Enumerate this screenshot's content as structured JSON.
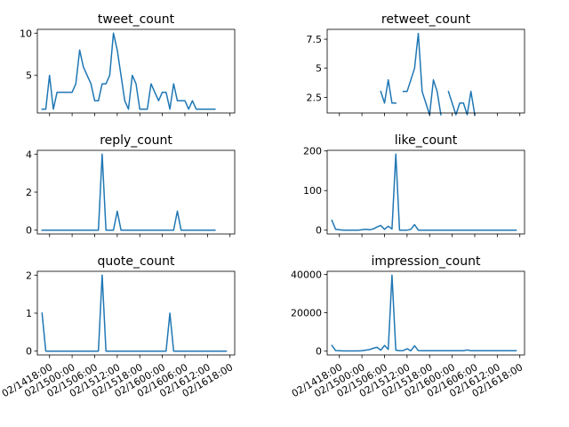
{
  "chart_data": [
    {
      "type": "line",
      "title": "tweet_count",
      "xlabel": "",
      "ylabel": "",
      "yticks": [
        5,
        10
      ],
      "ylim": [
        0.55,
        10.45
      ],
      "grid": false,
      "x": [
        "02/14 16:00",
        "02/14 17:00",
        "02/14 18:00",
        "02/14 19:00",
        "02/14 20:00",
        "02/14 21:00",
        "02/14 22:00",
        "02/14 23:00",
        "02/15 00:00",
        "02/15 01:00",
        "02/15 02:00",
        "02/15 03:00",
        "02/15 04:00",
        "02/15 05:00",
        "02/15 06:00",
        "02/15 07:00",
        "02/15 08:00",
        "02/15 09:00",
        "02/15 10:00",
        "02/15 11:00",
        "02/15 12:00",
        "02/15 13:00",
        "02/15 14:00",
        "02/15 15:00",
        "02/15 16:00",
        "02/15 17:00",
        "02/15 18:00",
        "02/15 19:00",
        "02/15 20:00",
        "02/15 21:00",
        "02/15 22:00",
        "02/15 23:00",
        "02/16 00:00",
        "02/16 01:00",
        "02/16 02:00",
        "02/16 03:00",
        "02/16 04:00",
        "02/16 05:00",
        "02/16 06:00",
        "02/16 07:00",
        "02/16 08:00",
        "02/16 09:00",
        "02/16 10:00",
        "02/16 11:00",
        "02/16 12:00",
        "02/16 13:00",
        "02/16 14:00",
        "02/16 15:00",
        "02/16 16:00",
        "02/16 17:00",
        "02/16 18:00"
      ],
      "values": [
        1,
        1,
        5,
        1,
        3,
        3,
        3,
        3,
        3,
        4,
        8,
        6,
        5,
        4,
        2,
        2,
        4,
        4,
        5,
        10,
        8,
        5,
        2,
        1,
        5,
        4,
        1,
        1,
        1,
        4,
        3,
        2,
        3,
        3,
        1,
        4,
        2,
        2,
        2,
        1,
        2,
        1,
        1,
        1,
        1,
        1,
        1,
        null,
        null,
        null,
        null
      ]
    },
    {
      "type": "line",
      "title": "retweet_count",
      "xlabel": "",
      "ylabel": "",
      "yticks": [
        2.5,
        5.0,
        7.5
      ],
      "ylim": [
        1.15,
        8.35
      ],
      "grid": false,
      "x": [
        "02/14 16:00",
        "02/14 17:00",
        "02/14 18:00",
        "02/14 19:00",
        "02/14 20:00",
        "02/14 21:00",
        "02/14 22:00",
        "02/14 23:00",
        "02/15 00:00",
        "02/15 01:00",
        "02/15 02:00",
        "02/15 03:00",
        "02/15 04:00",
        "02/15 05:00",
        "02/15 06:00",
        "02/15 07:00",
        "02/15 08:00",
        "02/15 09:00",
        "02/15 10:00",
        "02/15 11:00",
        "02/15 12:00",
        "02/15 13:00",
        "02/15 14:00",
        "02/15 15:00",
        "02/15 16:00",
        "02/15 17:00",
        "02/15 18:00",
        "02/15 19:00",
        "02/15 20:00",
        "02/15 21:00",
        "02/15 22:00",
        "02/15 23:00",
        "02/16 00:00",
        "02/16 01:00",
        "02/16 02:00",
        "02/16 03:00",
        "02/16 04:00",
        "02/16 05:00",
        "02/16 06:00",
        "02/16 07:00",
        "02/16 08:00",
        "02/16 09:00",
        "02/16 10:00",
        "02/16 11:00",
        "02/16 12:00",
        "02/16 13:00",
        "02/16 14:00",
        "02/16 15:00",
        "02/16 16:00",
        "02/16 17:00",
        "02/16 18:00"
      ],
      "values": [
        null,
        null,
        null,
        null,
        null,
        null,
        null,
        null,
        null,
        null,
        null,
        null,
        null,
        3,
        2,
        4,
        2,
        2,
        null,
        3,
        3,
        4,
        5,
        8,
        3,
        2,
        1,
        4,
        3,
        1,
        null,
        3,
        2,
        1,
        2,
        2,
        1,
        3,
        1,
        null,
        null,
        null,
        null,
        null,
        null,
        null,
        null,
        null,
        null,
        null,
        null
      ]
    },
    {
      "type": "line",
      "title": "reply_count",
      "xlabel": "",
      "ylabel": "",
      "yticks": [
        0,
        2,
        4
      ],
      "ylim": [
        -0.2,
        4.2
      ],
      "grid": false,
      "x": [
        "02/14 16:00",
        "02/14 17:00",
        "02/14 18:00",
        "02/14 19:00",
        "02/14 20:00",
        "02/14 21:00",
        "02/14 22:00",
        "02/14 23:00",
        "02/15 00:00",
        "02/15 01:00",
        "02/15 02:00",
        "02/15 03:00",
        "02/15 04:00",
        "02/15 05:00",
        "02/15 06:00",
        "02/15 07:00",
        "02/15 08:00",
        "02/15 09:00",
        "02/15 10:00",
        "02/15 11:00",
        "02/15 12:00",
        "02/15 13:00",
        "02/15 14:00",
        "02/15 15:00",
        "02/15 16:00",
        "02/15 17:00",
        "02/15 18:00",
        "02/15 19:00",
        "02/15 20:00",
        "02/15 21:00",
        "02/15 22:00",
        "02/15 23:00",
        "02/16 00:00",
        "02/16 01:00",
        "02/16 02:00",
        "02/16 03:00",
        "02/16 04:00",
        "02/16 05:00",
        "02/16 06:00",
        "02/16 07:00",
        "02/16 08:00",
        "02/16 09:00",
        "02/16 10:00",
        "02/16 11:00",
        "02/16 12:00",
        "02/16 13:00",
        "02/16 14:00",
        "02/16 15:00",
        "02/16 16:00",
        "02/16 17:00",
        "02/16 18:00"
      ],
      "values": [
        0,
        0,
        0,
        0,
        0,
        0,
        0,
        0,
        0,
        0,
        0,
        0,
        0,
        0,
        0,
        0,
        4,
        0,
        0,
        0,
        1,
        0,
        0,
        0,
        0,
        0,
        0,
        0,
        0,
        0,
        0,
        0,
        0,
        0,
        0,
        0,
        1,
        0,
        0,
        0,
        0,
        0,
        0,
        0,
        0,
        0,
        0,
        null,
        null,
        null,
        null
      ]
    },
    {
      "type": "line",
      "title": "like_count",
      "xlabel": "",
      "ylabel": "",
      "yticks": [
        0,
        100,
        200
      ],
      "ylim": [
        -9.6,
        201.6
      ],
      "grid": false,
      "x": [
        "02/14 16:00",
        "02/14 17:00",
        "02/14 18:00",
        "02/14 19:00",
        "02/14 20:00",
        "02/14 21:00",
        "02/14 22:00",
        "02/14 23:00",
        "02/15 00:00",
        "02/15 01:00",
        "02/15 02:00",
        "02/15 03:00",
        "02/15 04:00",
        "02/15 05:00",
        "02/15 06:00",
        "02/15 07:00",
        "02/15 08:00",
        "02/15 09:00",
        "02/15 10:00",
        "02/15 11:00",
        "02/15 12:00",
        "02/15 13:00",
        "02/15 14:00",
        "02/15 15:00",
        "02/15 16:00",
        "02/15 17:00",
        "02/15 18:00",
        "02/15 19:00",
        "02/15 20:00",
        "02/15 21:00",
        "02/15 22:00",
        "02/15 23:00",
        "02/16 00:00",
        "02/16 01:00",
        "02/16 02:00",
        "02/16 03:00",
        "02/16 04:00",
        "02/16 05:00",
        "02/16 06:00",
        "02/16 07:00",
        "02/16 08:00",
        "02/16 09:00",
        "02/16 10:00",
        "02/16 11:00",
        "02/16 12:00",
        "02/16 13:00",
        "02/16 14:00",
        "02/16 15:00",
        "02/16 16:00",
        "02/16 17:00",
        "02/16 18:00"
      ],
      "values": [
        25,
        2,
        1,
        0,
        0,
        0,
        0,
        0,
        1,
        2,
        1,
        3,
        8,
        12,
        2,
        10,
        3,
        192,
        0,
        0,
        0,
        2,
        14,
        0,
        0,
        0,
        0,
        0,
        0,
        0,
        0,
        0,
        0,
        0,
        0,
        0,
        0,
        0,
        0,
        0,
        0,
        0,
        0,
        0,
        0,
        0,
        0,
        0,
        0,
        0,
        null
      ]
    },
    {
      "type": "line",
      "title": "quote_count",
      "xlabel": "",
      "ylabel": "",
      "yticks": [
        0,
        1,
        2
      ],
      "ylim": [
        -0.1,
        2.1
      ],
      "grid": false,
      "x": [
        "02/14 16:00",
        "02/14 17:00",
        "02/14 18:00",
        "02/14 19:00",
        "02/14 20:00",
        "02/14 21:00",
        "02/14 22:00",
        "02/14 23:00",
        "02/15 00:00",
        "02/15 01:00",
        "02/15 02:00",
        "02/15 03:00",
        "02/15 04:00",
        "02/15 05:00",
        "02/15 06:00",
        "02/15 07:00",
        "02/15 08:00",
        "02/15 09:00",
        "02/15 10:00",
        "02/15 11:00",
        "02/15 12:00",
        "02/15 13:00",
        "02/15 14:00",
        "02/15 15:00",
        "02/15 16:00",
        "02/15 17:00",
        "02/15 18:00",
        "02/15 19:00",
        "02/15 20:00",
        "02/15 21:00",
        "02/15 22:00",
        "02/15 23:00",
        "02/16 00:00",
        "02/16 01:00",
        "02/16 02:00",
        "02/16 03:00",
        "02/16 04:00",
        "02/16 05:00",
        "02/16 06:00",
        "02/16 07:00",
        "02/16 08:00",
        "02/16 09:00",
        "02/16 10:00",
        "02/16 11:00",
        "02/16 12:00",
        "02/16 13:00",
        "02/16 14:00",
        "02/16 15:00",
        "02/16 16:00",
        "02/16 17:00",
        "02/16 18:00"
      ],
      "values": [
        1,
        0,
        0,
        0,
        0,
        0,
        0,
        0,
        0,
        0,
        0,
        0,
        0,
        0,
        0,
        0,
        2,
        0,
        0,
        0,
        0,
        0,
        0,
        0,
        0,
        0,
        0,
        0,
        0,
        0,
        0,
        0,
        0,
        0,
        1,
        0,
        0,
        0,
        0,
        0,
        0,
        0,
        0,
        0,
        0,
        0,
        0,
        0,
        0,
        0,
        null
      ]
    },
    {
      "type": "line",
      "title": "impression_count",
      "xlabel": "",
      "ylabel": "",
      "yticks": [
        0,
        20000,
        40000
      ],
      "ylim": [
        -1980,
        41580
      ],
      "grid": false,
      "x": [
        "02/14 16:00",
        "02/14 17:00",
        "02/14 18:00",
        "02/14 19:00",
        "02/14 20:00",
        "02/14 21:00",
        "02/14 22:00",
        "02/14 23:00",
        "02/15 00:00",
        "02/15 01:00",
        "02/15 02:00",
        "02/15 03:00",
        "02/15 04:00",
        "02/15 05:00",
        "02/15 06:00",
        "02/15 07:00",
        "02/15 08:00",
        "02/15 09:00",
        "02/15 10:00",
        "02/15 11:00",
        "02/15 12:00",
        "02/15 13:00",
        "02/15 14:00",
        "02/15 15:00",
        "02/15 16:00",
        "02/15 17:00",
        "02/15 18:00",
        "02/15 19:00",
        "02/15 20:00",
        "02/15 21:00",
        "02/15 22:00",
        "02/15 23:00",
        "02/16 00:00",
        "02/16 01:00",
        "02/16 02:00",
        "02/16 03:00",
        "02/16 04:00",
        "02/16 05:00",
        "02/16 06:00",
        "02/16 07:00",
        "02/16 08:00",
        "02/16 09:00",
        "02/16 10:00",
        "02/16 11:00",
        "02/16 12:00",
        "02/16 13:00",
        "02/16 14:00",
        "02/16 15:00",
        "02/16 16:00",
        "02/16 17:00",
        "02/16 18:00"
      ],
      "values": [
        3000,
        300,
        200,
        100,
        100,
        100,
        100,
        100,
        200,
        500,
        800,
        1500,
        2000,
        500,
        3000,
        900,
        39600,
        500,
        200,
        300,
        1200,
        200,
        2800,
        300,
        200,
        200,
        200,
        200,
        200,
        200,
        200,
        200,
        200,
        200,
        200,
        200,
        600,
        200,
        200,
        200,
        200,
        200,
        200,
        200,
        200,
        200,
        200,
        200,
        200,
        200,
        null
      ]
    }
  ],
  "x_tick_labels": [
    "02/14",
    "18:00",
    "02/15",
    "00:00",
    "02/15",
    "06:00",
    "02/15",
    "12:00",
    "02/15",
    "18:00",
    "02/16",
    "00:00",
    "02/16",
    "06:00",
    "02/16",
    "12:00",
    "02/16",
    "18:00"
  ],
  "x_ticks": [
    "02/14 18:00",
    "02/15 00:00",
    "02/15 06:00",
    "02/15 12:00",
    "02/15 18:00",
    "02/16 00:00",
    "02/16 06:00",
    "02/16 12:00",
    "02/16 18:00"
  ],
  "x_tick_text": [
    "02/1418:00",
    "02/1500:00",
    "02/1506:00",
    "02/1512:00",
    "02/1518:00",
    "02/1600:00",
    "02/1606:00",
    "02/1612:00",
    "02/1618:00"
  ],
  "x_range": [
    "02/14 14:45",
    "02/16 19:15"
  ],
  "colors": {
    "line": "#1f77b4",
    "axes": "#000000",
    "background": "#ffffff"
  }
}
